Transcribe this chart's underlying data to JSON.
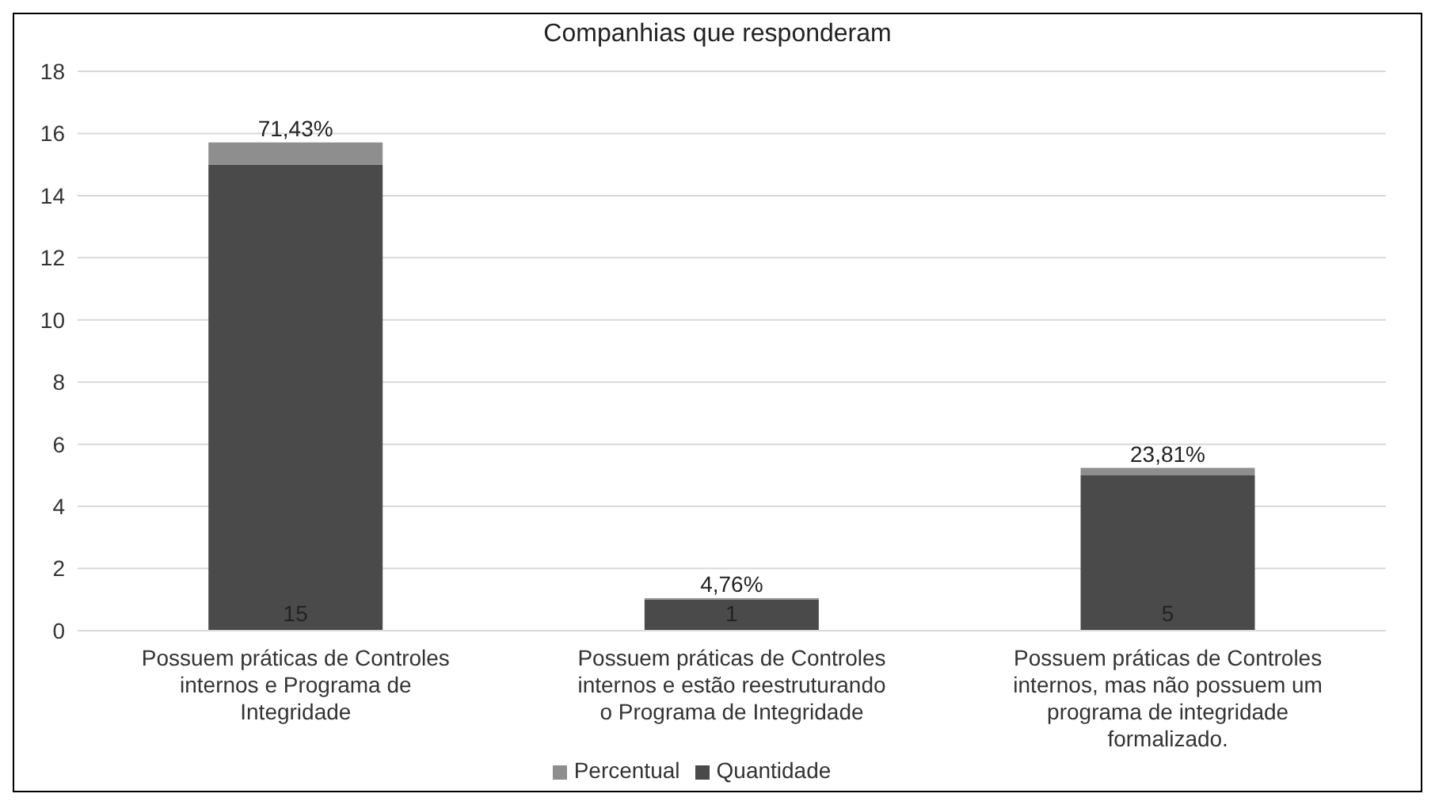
{
  "chart_data": {
    "type": "bar",
    "title": "Companhias que responderam",
    "categories": [
      "Possuem práticas de Controles internos e Programa de Integridade",
      "Possuem práticas de Controles internos e estão reestruturando o Programa de Integridade",
      "Possuem práticas de Controles internos, mas não possuem um programa de integridade formalizado."
    ],
    "series": [
      {
        "name": "Quantidade",
        "color": "#4a4a4a",
        "values": [
          15,
          1,
          5
        ],
        "value_labels": [
          "15",
          "1",
          "5"
        ]
      },
      {
        "name": "Percentual",
        "color": "#8e8e8e",
        "values": [
          0.7143,
          0.0476,
          0.2381
        ],
        "value_labels": [
          "71,43%",
          "4,76%",
          "23,81%"
        ]
      }
    ],
    "stacked": true,
    "ylim": [
      0,
      18
    ],
    "yticks": [
      0,
      2,
      4,
      6,
      8,
      10,
      12,
      14,
      16,
      18
    ],
    "grid": "y",
    "legend": "bottom"
  }
}
